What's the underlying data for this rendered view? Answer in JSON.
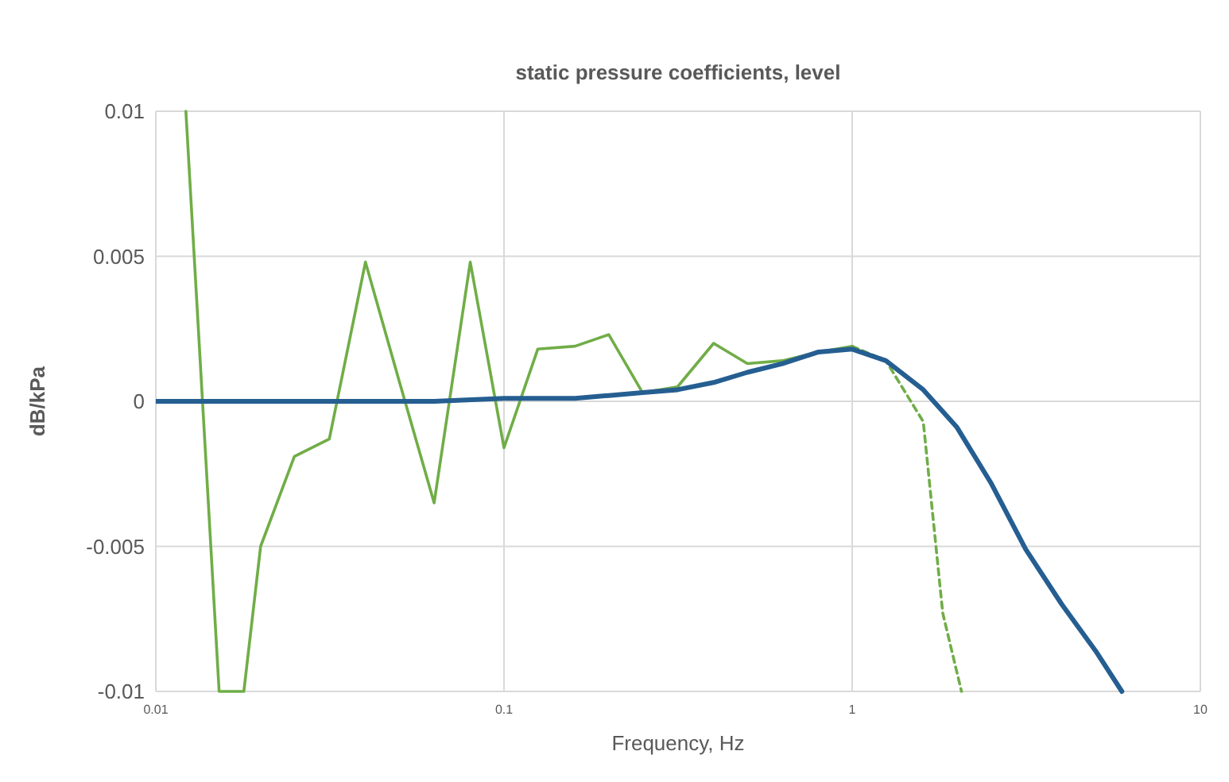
{
  "chart_data": {
    "type": "line",
    "title": "static pressure coefficients, level",
    "xlabel": "Frequency, Hz",
    "ylabel": "dB/kPa",
    "log": "x",
    "xlim": [
      0.01,
      10
    ],
    "xticks": [
      0.01,
      0.1,
      1,
      10
    ],
    "ylim": [
      -0.01,
      0.01
    ],
    "yticks": [
      {
        "value": -0.01,
        "label": "-0.01"
      },
      {
        "value": -0.005,
        "label": "-0.005"
      },
      0,
      0.005,
      0.01
    ],
    "grid": true,
    "marker": "none",
    "series": [
      {
        "color": "#70ad47",
        "line_style": "solid",
        "x": [
          0.0122,
          0.0152,
          0.0179,
          0.02,
          0.025,
          0.0315,
          0.04,
          0.05,
          0.063,
          0.08,
          0.1,
          0.125,
          0.16,
          0.2,
          0.25,
          0.315,
          0.4,
          0.5,
          0.63,
          0.8,
          1
        ],
        "values": [
          0.01,
          -0.01,
          -0.01,
          -0.005,
          -0.0019,
          -0.0013,
          0.0048,
          0.0007,
          -0.0035,
          0.0048,
          -0.0016,
          0.0018,
          0.0019,
          0.0023,
          0.0003,
          0.0005,
          0.002,
          0.0013,
          0.0014,
          0.0017,
          0.0019
        ]
      },
      {
        "color": "#70ad47",
        "line_style": "dashed",
        "x": [
          1,
          1.25,
          1.6,
          1.82,
          2.06
        ],
        "values": [
          0.0019,
          0.0014,
          -0.0007,
          -0.0073,
          -0.01
        ]
      },
      {
        "color": "#255e91",
        "line_style": "solid",
        "x": [
          0.01,
          0.03,
          0.063,
          0.1,
          0.125,
          0.16,
          0.2,
          0.25,
          0.315,
          0.4,
          0.5,
          0.63,
          0.8,
          1,
          1.25,
          1.6,
          2,
          2.5,
          3.15,
          4,
          5,
          5.95
        ],
        "values": [
          0,
          0,
          0,
          0.0001,
          0.0001,
          0.0001,
          0.0002,
          0.0003,
          0.0004,
          0.00065,
          0.001,
          0.0013,
          0.0017,
          0.0018,
          0.0014,
          0.0004,
          -0.0009,
          -0.0028,
          -0.0051,
          -0.007,
          -0.0086,
          -0.01
        ]
      }
    ]
  }
}
